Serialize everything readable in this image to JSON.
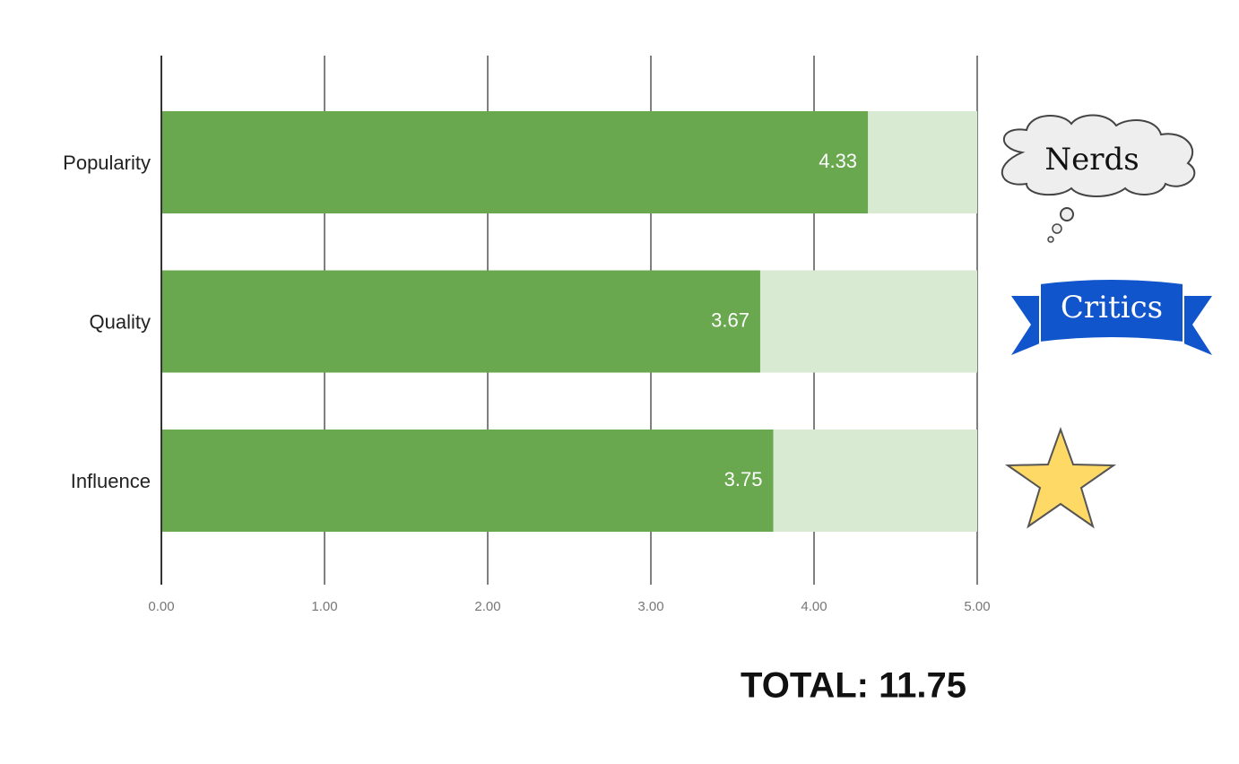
{
  "chart_data": {
    "type": "bar",
    "orientation": "horizontal",
    "categories": [
      "Popularity",
      "Quality",
      "Influence"
    ],
    "series": [
      {
        "values": [
          4.33,
          3.67,
          3.75
        ],
        "color": "#6aa84f"
      }
    ],
    "track_color": "#d9ead3",
    "xlim": [
      0,
      5
    ],
    "xticks": [
      {
        "value": 0,
        "label": "0.00"
      },
      {
        "value": 1,
        "label": "1.00"
      },
      {
        "value": 2,
        "label": "2.00"
      },
      {
        "value": 3,
        "label": "3.00"
      },
      {
        "value": 4,
        "label": "4.00"
      },
      {
        "value": 5,
        "label": "5.00"
      }
    ],
    "grid": true,
    "annotations": [
      "Nerds",
      "Critics",
      "TOTAL: 11.75"
    ]
  }
}
